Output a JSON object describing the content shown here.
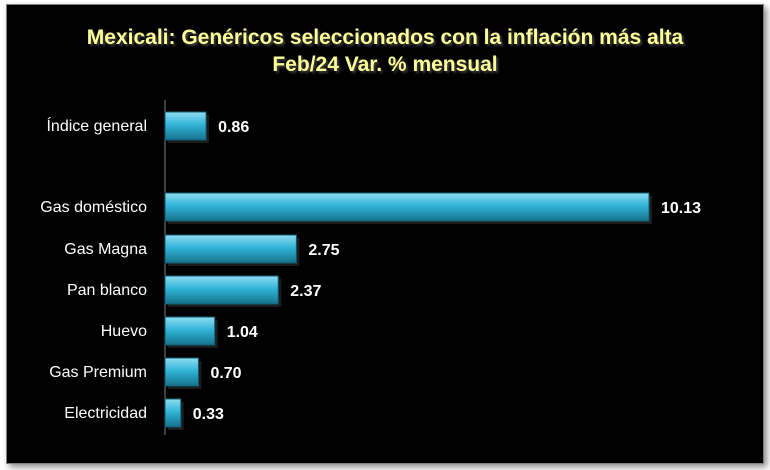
{
  "chart_data": {
    "type": "bar",
    "orientation": "horizontal",
    "title": "Mexicali: Genéricos seleccionados con la inflación más alta",
    "subtitle": "Feb/24  Var. % mensual",
    "categories": [
      "Índice general",
      "Gas doméstico",
      "Gas Magna",
      "Pan blanco",
      "Huevo",
      "Gas Premium",
      "Electricidad"
    ],
    "values": [
      0.86,
      10.13,
      2.75,
      2.37,
      1.04,
      0.7,
      0.33
    ],
    "value_labels": [
      "0.86",
      "10.13",
      "2.75",
      "2.37",
      "1.04",
      "0.70",
      "0.33"
    ],
    "xlim": [
      0,
      10.13
    ],
    "grid": false,
    "legend": "none"
  },
  "colors": {
    "background": "#000000",
    "title": "#ffff99",
    "bar_light": "#8fdcf0",
    "bar_mid": "#31b5d8",
    "bar_dark": "#16728c",
    "text": "#ffffff",
    "axis": "#808080"
  }
}
